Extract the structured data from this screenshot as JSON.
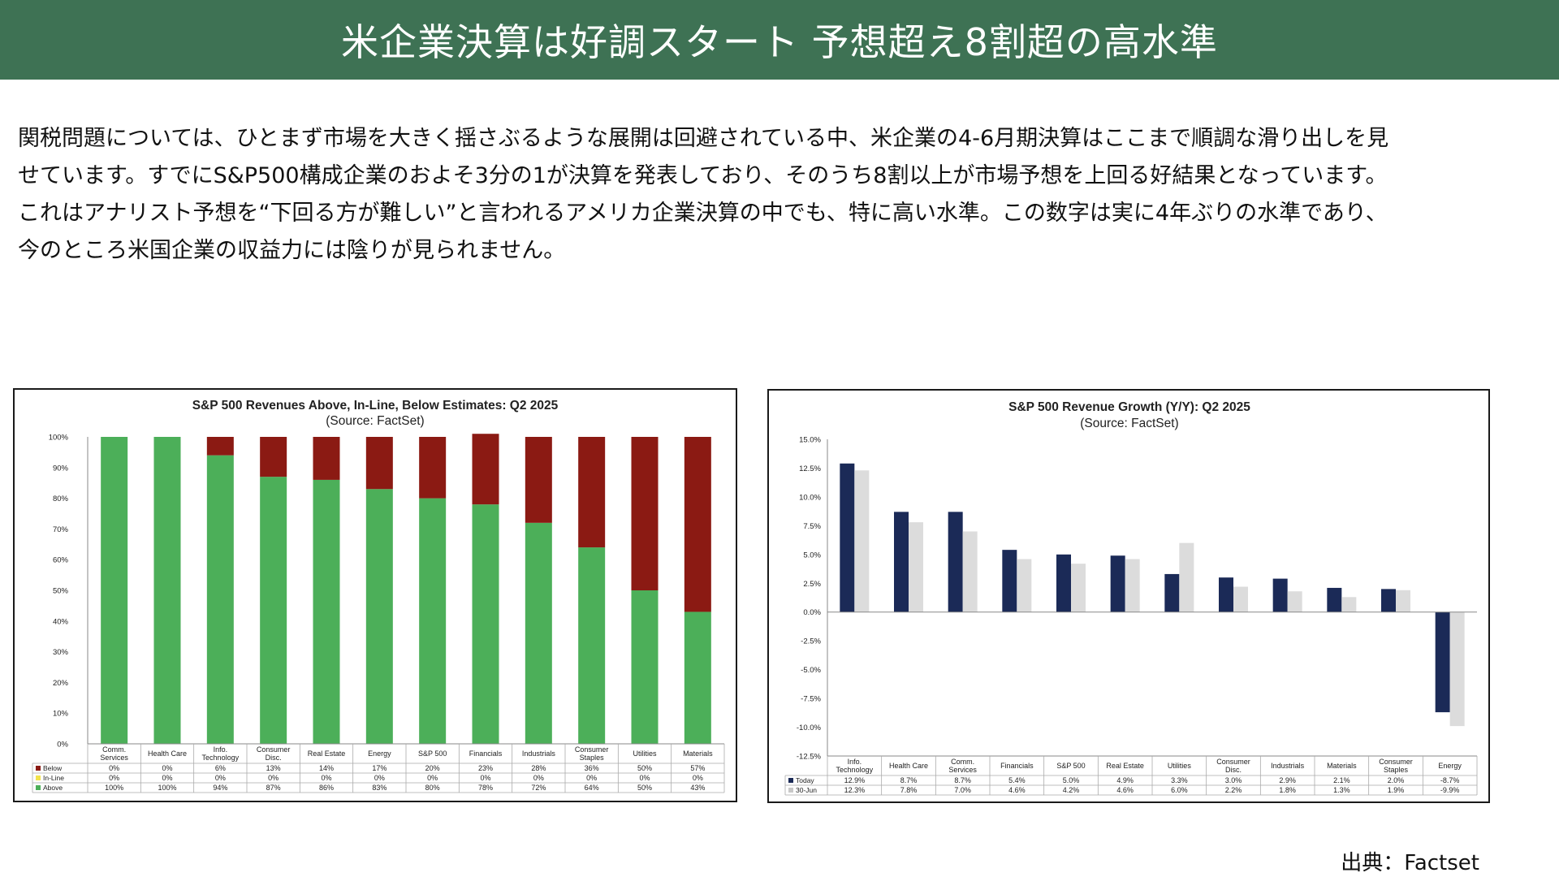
{
  "header": {
    "title": "米企業決算は好調スタート 予想超え8割超の高水準"
  },
  "body": {
    "lines": [
      "関税問題については、ひとまず市場を大きく揺さぶるような展開は回避されている中、米企業の4-6月期決算はここまで順調な滑り出しを見",
      "せています。すでにS&P500構成企業のおよそ3分の1が決算を発表しており、そのうち8割以上が市場予想を上回る好結果となっています。",
      "これはアナリスト予想を“下回る方が難しい”と言われるアメリカ企業決算の中でも、特に高い水準。この数字は実に4年ぶりの水準であり、",
      "今のところ米国企業の収益力には陰りが見られません。"
    ]
  },
  "source_note": "出典：Factset",
  "colors": {
    "header_bg": "#3e7254",
    "above": "#4caf59",
    "inline": "#f2e24b",
    "below": "#8b1a13",
    "today": "#1b2a57",
    "jun30": "#dcdcdc"
  },
  "chart_data": [
    {
      "type": "bar",
      "stacked": true,
      "title": "S&P 500 Revenues Above, In-Line, Below Estimates: Q2 2025",
      "subtitle": "(Source: FactSet)",
      "categories": [
        "Comm.\nServices",
        "Health Care",
        "Info.\nTechnology",
        "Consumer\nDisc.",
        "Real Estate",
        "Energy",
        "S&P 500",
        "Financials",
        "Industrials",
        "Consumer\nStaples",
        "Utilities",
        "Materials"
      ],
      "series": [
        {
          "name": "Below",
          "values": [
            0,
            0,
            6,
            13,
            14,
            17,
            20,
            23,
            28,
            36,
            50,
            57
          ],
          "labels": [
            "0%",
            "0%",
            "6%",
            "13%",
            "14%",
            "17%",
            "20%",
            "23%",
            "28%",
            "36%",
            "50%",
            "57%"
          ]
        },
        {
          "name": "In-Line",
          "values": [
            0,
            0,
            0,
            0,
            0,
            0,
            0,
            0,
            0,
            0,
            0,
            0
          ],
          "labels": [
            "0%",
            "0%",
            "0%",
            "0%",
            "0%",
            "0%",
            "0%",
            "0%",
            "0%",
            "0%",
            "0%",
            "0%"
          ]
        },
        {
          "name": "Above",
          "values": [
            100,
            100,
            94,
            87,
            86,
            83,
            80,
            78,
            72,
            64,
            50,
            43
          ],
          "labels": [
            "100%",
            "100%",
            "94%",
            "87%",
            "86%",
            "83%",
            "80%",
            "78%",
            "72%",
            "64%",
            "50%",
            "43%"
          ]
        }
      ],
      "ylim": [
        0,
        100
      ],
      "yticks": [
        "0%",
        "10%",
        "20%",
        "30%",
        "40%",
        "50%",
        "60%",
        "70%",
        "80%",
        "90%",
        "100%"
      ],
      "grid": false,
      "legend": "data-table"
    },
    {
      "type": "bar",
      "stacked": false,
      "title": "S&P 500 Revenue Growth (Y/Y): Q2 2025",
      "subtitle": "(Source: FactSet)",
      "categories": [
        "Info.\nTechnology",
        "Health Care",
        "Comm.\nServices",
        "Financials",
        "S&P 500",
        "Real Estate",
        "Utilities",
        "Consumer\nDisc.",
        "Industrials",
        "Materials",
        "Consumer\nStaples",
        "Energy"
      ],
      "series": [
        {
          "name": "Today",
          "values": [
            12.9,
            8.7,
            8.7,
            5.4,
            5.0,
            4.9,
            3.3,
            3.0,
            2.9,
            2.1,
            2.0,
            -8.7
          ],
          "labels": [
            "12.9%",
            "8.7%",
            "8.7%",
            "5.4%",
            "5.0%",
            "4.9%",
            "3.3%",
            "3.0%",
            "2.9%",
            "2.1%",
            "2.0%",
            "-8.7%"
          ]
        },
        {
          "name": "30-Jun",
          "values": [
            12.3,
            7.8,
            7.0,
            4.6,
            4.2,
            4.6,
            6.0,
            2.2,
            1.8,
            1.3,
            1.9,
            -9.9
          ],
          "labels": [
            "12.3%",
            "7.8%",
            "7.0%",
            "4.6%",
            "4.2%",
            "4.6%",
            "6.0%",
            "2.2%",
            "1.8%",
            "1.3%",
            "1.9%",
            "-9.9%"
          ]
        }
      ],
      "ylim": [
        -12.5,
        15.0
      ],
      "yticks": [
        "-12.5%",
        "-10.0%",
        "-7.5%",
        "-5.0%",
        "-2.5%",
        "0.0%",
        "2.5%",
        "5.0%",
        "7.5%",
        "10.0%",
        "12.5%",
        "15.0%"
      ],
      "grid": false,
      "legend": "data-table"
    }
  ]
}
